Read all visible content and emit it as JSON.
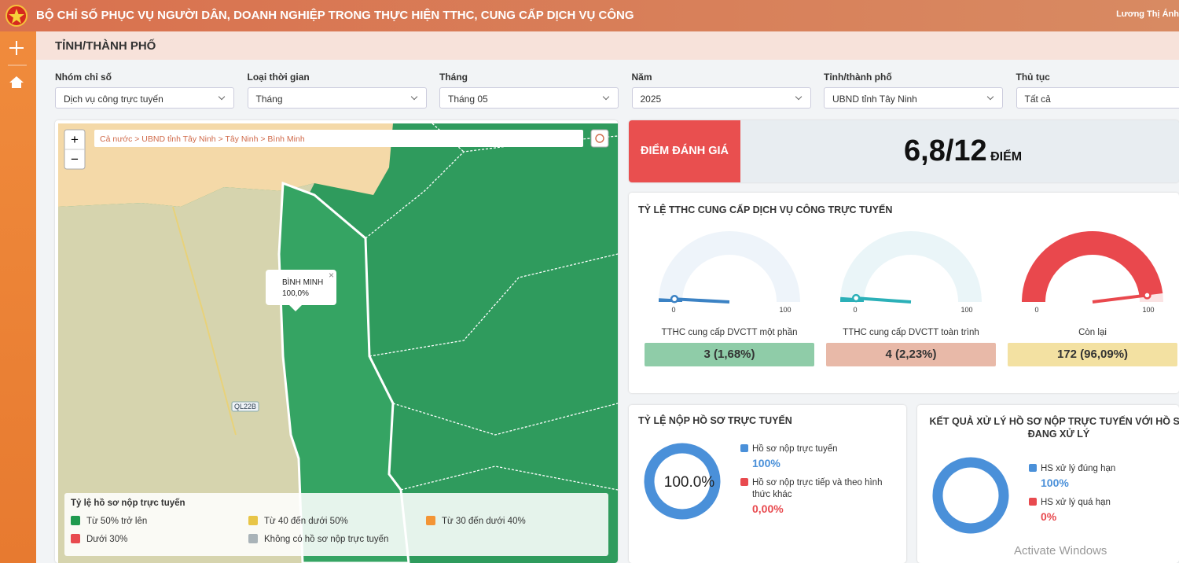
{
  "header": {
    "title": "BỘ CHỈ SỐ PHỤC VỤ NGƯỜI DÂN, DOANH NGHIỆP TRONG THỰC HIỆN TTHC, CUNG CẤP DỊCH VỤ CÔNG",
    "user": "Lương Thị Ánh"
  },
  "page_title": "TỈNH/THÀNH PHỐ",
  "filters": [
    {
      "label": "Nhóm chỉ số",
      "value": "Dịch vụ công trực tuyến"
    },
    {
      "label": "Loại thời gian",
      "value": "Tháng"
    },
    {
      "label": "Tháng",
      "value": "Tháng 05"
    },
    {
      "label": "Năm",
      "value": "2025"
    },
    {
      "label": "Tỉnh/thành phố",
      "value": "UBND tỉnh Tây Ninh"
    },
    {
      "label": "Thủ tục",
      "value": "Tất cả"
    }
  ],
  "map": {
    "zoom_in": "+",
    "zoom_out": "−",
    "breadcrumb": "Cả nước > UBND tỉnh Tây Ninh > Tây Ninh > Bình Minh",
    "popup": {
      "name": "BÌNH MINH",
      "value": "100,0%",
      "close": "×"
    },
    "road_label": "QL22B",
    "legend": {
      "title": "Tỷ lệ hồ sơ nộp trực tuyến",
      "items": [
        {
          "label": "Từ 50% trở lên",
          "color": "#1f9a4f"
        },
        {
          "label": "Từ 40 đến dưới 50%",
          "color": "#e8c547"
        },
        {
          "label": "Từ 30 đến dưới 40%",
          "color": "#f39435"
        },
        {
          "label": "Dưới 30%",
          "color": "#e84a4f"
        },
        {
          "label": "Không có hồ sơ nộp trực tuyến",
          "color": "#a9b3b8"
        }
      ]
    }
  },
  "score": {
    "label": "ĐIỂM ĐÁNH GIÁ",
    "value": "6,8/12",
    "unit": "ĐIỂM"
  },
  "gauges": {
    "title": "TỶ LỆ TTHC CUNG CẤP DỊCH VỤ CÔNG TRỰC TUYẾN",
    "items": [
      {
        "label": "TTHC cung cấp DVCTT một phần",
        "value": 1.68,
        "min": 0,
        "max": 100,
        "text": "3 (1,68%)",
        "color": "#3b82c4",
        "track": "#eef4fa",
        "box": "#8fcca8"
      },
      {
        "label": "TTHC cung cấp DVCTT toàn trình",
        "value": 2.23,
        "min": 0,
        "max": 100,
        "text": "4 (2,23%)",
        "color": "#2bb0b8",
        "track": "#eaf5f8",
        "box": "#e8b9a8"
      },
      {
        "label": "Còn lại",
        "value": 96.09,
        "min": 0,
        "max": 100,
        "text": "172 (96,09%)",
        "color": "#e9484d",
        "track": "#fbe3e3",
        "box": "#f3e1a2"
      }
    ]
  },
  "donuts": [
    {
      "title": "TỶ LỆ NỘP HỒ SƠ TRỰC TUYẾN",
      "center_label": "100.0%",
      "series": [
        {
          "name": "Hồ sơ nộp trực tuyến",
          "value": 100,
          "value_label": "100%",
          "color": "#4a90d9"
        },
        {
          "name": "Hồ sơ nộp trực tiếp và theo hình thức khác",
          "value": 0,
          "value_label": "0,00%",
          "color": "#e84a4f"
        }
      ]
    },
    {
      "title": "KẾT QUẢ XỬ LÝ HỒ SƠ NỘP TRỰC TUYẾN VỚI HỒ SƠ ĐANG XỬ LÝ",
      "series": [
        {
          "name": "HS xử lý đúng hạn",
          "value": 100,
          "value_label": "100%",
          "color": "#4a90d9"
        },
        {
          "name": "HS xử lý quá hạn",
          "value": 0,
          "value_label": "0%",
          "color": "#e84a4f"
        }
      ]
    }
  ],
  "watermark": "Activate Windows"
}
